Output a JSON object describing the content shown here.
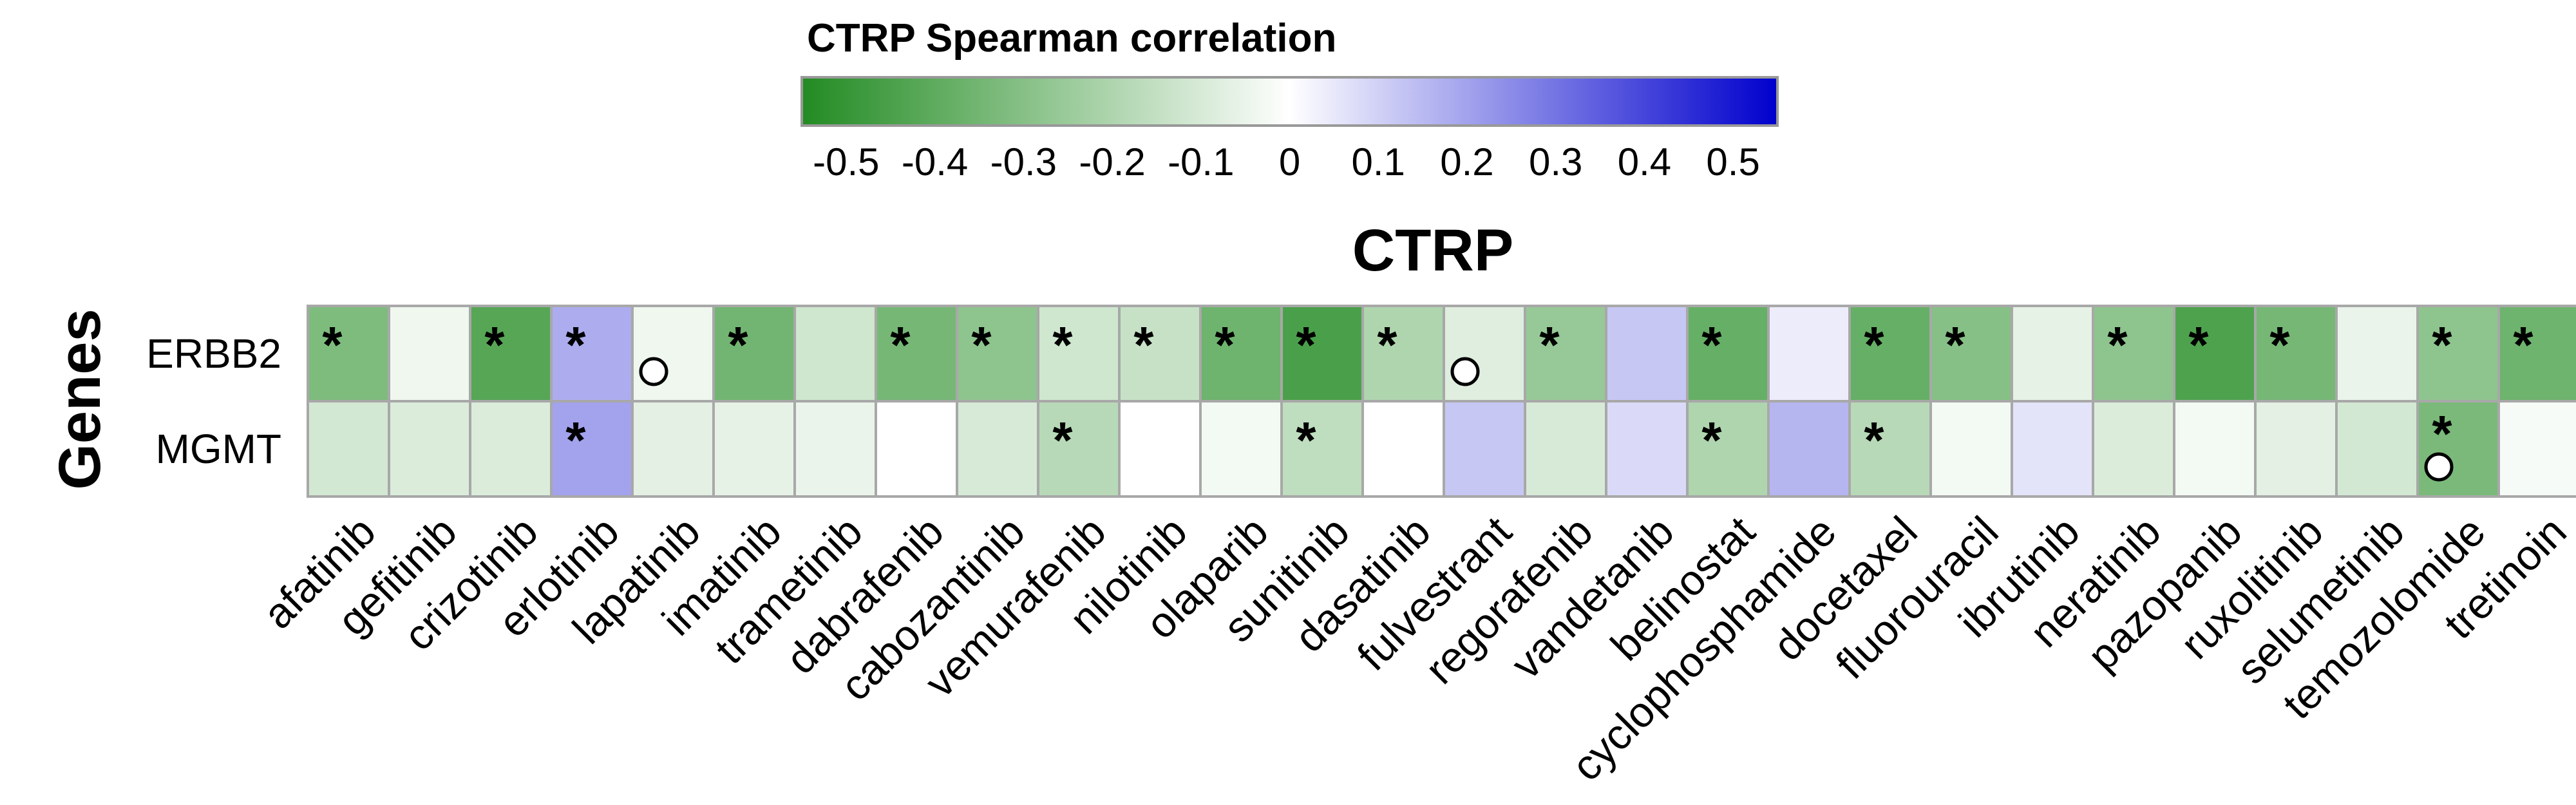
{
  "chart_data": {
    "type": "heatmap",
    "title": "CTRP",
    "ylabel": "Genes",
    "colorbar": {
      "title": "CTRP Spearman correlation",
      "range": [
        -0.55,
        0.55
      ],
      "ticks": [
        -0.5,
        -0.4,
        -0.3,
        -0.2,
        -0.1,
        0,
        0.1,
        0.2,
        0.3,
        0.4,
        0.5
      ],
      "tick_labels": [
        "-0.5",
        "-0.4",
        "-0.3",
        "-0.2",
        "-0.1",
        "0",
        "0.1",
        "0.2",
        "0.3",
        "0.4",
        "0.5"
      ],
      "colors": {
        "low": "#228B22",
        "mid": "#FFFFFF",
        "high": "#0000CD"
      }
    },
    "rows": [
      "ERBB2",
      "MGMT"
    ],
    "columns": [
      "afatinib",
      "gefitinib",
      "crizotinib",
      "erlotinib",
      "lapatinib",
      "imatinib",
      "trametinib",
      "dabrafenib",
      "cabozantinib",
      "vemurafenib",
      "nilotinib",
      "olaparib",
      "sunitinib",
      "dasatinib",
      "fulvestrant",
      "regorafenib",
      "vandetanib",
      "belinostat",
      "cyclophosphamide",
      "docetaxel",
      "fluorouracil",
      "ibrutinib",
      "neratinib",
      "pazopanib",
      "ruxolitinib",
      "selumetinib",
      "temozolomide",
      "tretinoin"
    ],
    "values": [
      [
        -0.32,
        -0.04,
        -0.42,
        0.18,
        -0.04,
        -0.35,
        -0.12,
        -0.34,
        -0.28,
        -0.12,
        -0.14,
        -0.36,
        -0.45,
        -0.2,
        -0.08,
        -0.26,
        0.12,
        -0.38,
        0.04,
        -0.38,
        -0.3,
        -0.06,
        -0.28,
        -0.44,
        -0.34,
        -0.05,
        -0.28,
        -0.36
      ],
      [
        -0.11,
        -0.09,
        -0.09,
        0.2,
        -0.07,
        -0.06,
        -0.05,
        0.0,
        -0.1,
        -0.18,
        0.0,
        -0.03,
        -0.16,
        0.0,
        0.12,
        -0.1,
        0.08,
        -0.2,
        0.16,
        -0.18,
        -0.03,
        0.06,
        -0.09,
        -0.03,
        -0.07,
        -0.11,
        -0.33,
        -0.02
      ]
    ],
    "significant": [
      [
        1,
        0,
        1,
        1,
        0,
        1,
        0,
        1,
        1,
        1,
        1,
        1,
        1,
        1,
        0,
        1,
        0,
        1,
        0,
        1,
        1,
        0,
        1,
        1,
        1,
        0,
        1,
        1
      ],
      [
        0,
        0,
        0,
        1,
        0,
        0,
        0,
        0,
        0,
        1,
        0,
        0,
        1,
        0,
        0,
        0,
        0,
        1,
        0,
        1,
        0,
        0,
        0,
        0,
        0,
        0,
        1,
        0
      ]
    ],
    "circle": [
      [
        0,
        0,
        0,
        0,
        1,
        0,
        0,
        0,
        0,
        0,
        0,
        0,
        0,
        0,
        1,
        0,
        0,
        0,
        0,
        0,
        0,
        0,
        0,
        0,
        0,
        0,
        0,
        0
      ],
      [
        0,
        0,
        0,
        0,
        0,
        0,
        0,
        0,
        0,
        0,
        0,
        0,
        0,
        0,
        0,
        0,
        0,
        0,
        0,
        0,
        0,
        0,
        0,
        0,
        0,
        0,
        1,
        0
      ]
    ],
    "significance_marker": "*"
  }
}
